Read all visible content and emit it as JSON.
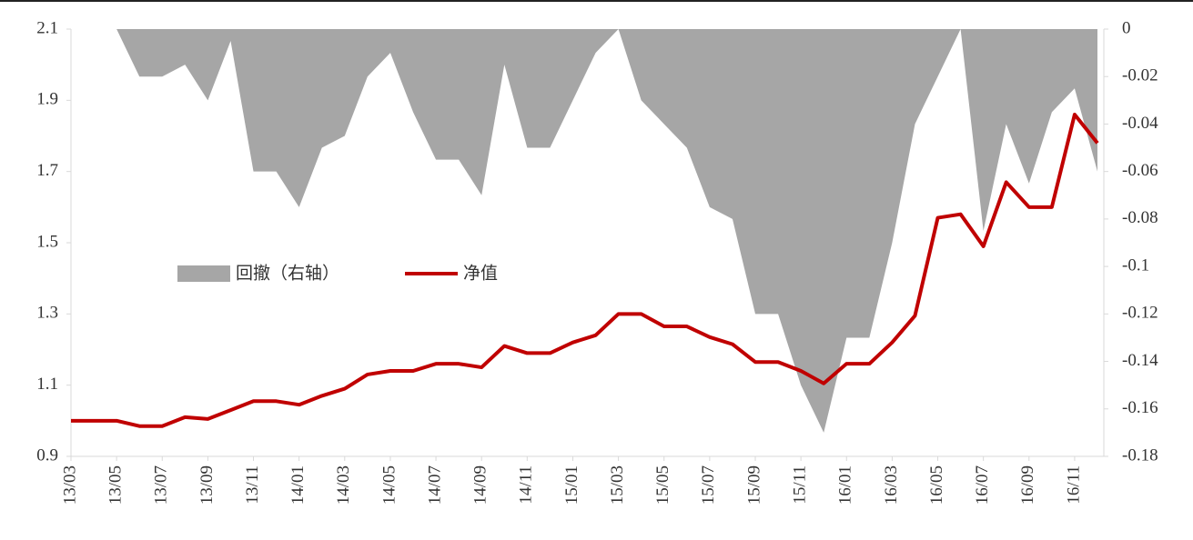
{
  "chart_data": {
    "type": "line",
    "categories": [
      "13/03",
      null,
      "13/05",
      null,
      "13/07",
      null,
      "13/09",
      null,
      "13/11",
      null,
      "14/01",
      null,
      "14/03",
      null,
      "14/05",
      null,
      "14/07",
      null,
      "14/09",
      null,
      "14/11",
      null,
      "15/01",
      null,
      "15/03",
      null,
      "15/05",
      null,
      "15/07",
      null,
      "15/09",
      null,
      "15/11",
      null,
      "16/01",
      null,
      "16/03",
      null,
      "16/05",
      null,
      "16/07",
      null,
      "16/09",
      null,
      "16/11",
      null
    ],
    "series": [
      {
        "name": "回撤（右轴）",
        "color": "#a6a6a6",
        "axis": "y2",
        "fill": true,
        "values": [
          0,
          0,
          0,
          -0.02,
          -0.02,
          -0.015,
          -0.03,
          -0.005,
          -0.06,
          -0.06,
          -0.075,
          -0.05,
          -0.045,
          -0.02,
          -0.01,
          -0.035,
          -0.055,
          -0.055,
          -0.07,
          -0.015,
          -0.05,
          -0.05,
          -0.03,
          -0.01,
          0,
          -0.03,
          -0.04,
          -0.05,
          -0.075,
          -0.08,
          -0.12,
          -0.12,
          -0.15,
          -0.17,
          -0.13,
          -0.13,
          -0.09,
          -0.04,
          -0.02,
          0,
          -0.085,
          -0.04,
          -0.065,
          -0.035,
          -0.025,
          -0.06
        ]
      },
      {
        "name": "净值",
        "color": "#c00000",
        "values": [
          1.0,
          1.0,
          1.0,
          0.985,
          0.985,
          1.01,
          1.005,
          1.03,
          1.055,
          1.055,
          1.045,
          1.07,
          1.09,
          1.13,
          1.14,
          1.14,
          1.16,
          1.16,
          1.15,
          1.21,
          1.19,
          1.19,
          1.22,
          1.24,
          1.3,
          1.3,
          1.265,
          1.265,
          1.235,
          1.215,
          1.165,
          1.165,
          1.14,
          1.105,
          1.16,
          1.16,
          1.22,
          1.295,
          1.57,
          1.58,
          1.49,
          1.67,
          1.6,
          1.6,
          1.86,
          1.78
        ]
      }
    ],
    "ylim": [
      0.9,
      2.1
    ],
    "yticks": [
      0.9,
      1.1,
      1.3,
      1.5,
      1.7,
      1.9,
      2.1
    ],
    "y2lim": [
      -0.18,
      0
    ],
    "y2ticks": [
      -0.18,
      -0.16,
      -0.14,
      -0.12,
      -0.1,
      -0.08,
      -0.06,
      -0.04,
      -0.02,
      0
    ],
    "legend": "center-left"
  }
}
